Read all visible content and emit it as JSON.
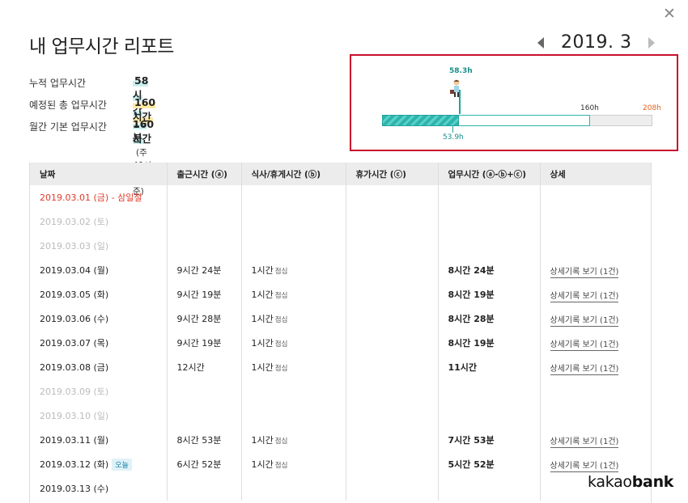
{
  "close_icon": "close-icon",
  "title": "내 업무시간 리포트",
  "month": "2019. 3",
  "summary": {
    "cumulative_label": "누적 업무시간",
    "cumulative_value": "58시간 16분",
    "planned_label": "예정된 총 업무시간",
    "planned_value": "160시간",
    "base_label": "월간 기본 업무시간",
    "base_value": "160시간",
    "base_note": "(주 40시간 기준)"
  },
  "chart_data": {
    "type": "bar",
    "current_label": "58.3h",
    "actual_label": "53.9h",
    "base_label": "160h",
    "max_label": "208h",
    "current": 58.3,
    "actual": 53.9,
    "base": 160,
    "max": 208
  },
  "table": {
    "headers": [
      "날짜",
      "출근시간 (ⓐ)",
      "식사/휴게시간 (ⓑ)",
      "휴가시간 (ⓒ)",
      "업무시간 (ⓐ-ⓑ+ⓒ)",
      "상세"
    ],
    "rows": [
      {
        "date": "2019.03.01 (금) - 삼일절",
        "type": "holiday",
        "work": "",
        "break": "",
        "break_note": "",
        "vacation": "",
        "total": "",
        "detail": ""
      },
      {
        "date": "2019.03.02 (토)",
        "type": "weekend",
        "work": "",
        "break": "",
        "break_note": "",
        "vacation": "",
        "total": "",
        "detail": ""
      },
      {
        "date": "2019.03.03 (일)",
        "type": "weekend",
        "work": "",
        "break": "",
        "break_note": "",
        "vacation": "",
        "total": "",
        "detail": ""
      },
      {
        "date": "2019.03.04 (월)",
        "type": "normal",
        "work": "9시간 24분",
        "break": "1시간",
        "break_note": "점심",
        "vacation": "",
        "total": "8시간 24분",
        "detail": "상세기록 보기 (1건)"
      },
      {
        "date": "2019.03.05 (화)",
        "type": "normal",
        "work": "9시간 19분",
        "break": "1시간",
        "break_note": "점심",
        "vacation": "",
        "total": "8시간 19분",
        "detail": "상세기록 보기 (1건)"
      },
      {
        "date": "2019.03.06 (수)",
        "type": "normal",
        "work": "9시간 28분",
        "break": "1시간",
        "break_note": "점심",
        "vacation": "",
        "total": "8시간 28분",
        "detail": "상세기록 보기 (1건)"
      },
      {
        "date": "2019.03.07 (목)",
        "type": "normal",
        "work": "9시간 19분",
        "break": "1시간",
        "break_note": "점심",
        "vacation": "",
        "total": "8시간 19분",
        "detail": "상세기록 보기 (1건)"
      },
      {
        "date": "2019.03.08 (금)",
        "type": "normal",
        "work": "12시간",
        "break": "1시간",
        "break_note": "점심",
        "vacation": "",
        "total": "11시간",
        "detail": "상세기록 보기 (1건)"
      },
      {
        "date": "2019.03.09 (토)",
        "type": "weekend",
        "work": "",
        "break": "",
        "break_note": "",
        "vacation": "",
        "total": "",
        "detail": ""
      },
      {
        "date": "2019.03.10 (일)",
        "type": "weekend",
        "work": "",
        "break": "",
        "break_note": "",
        "vacation": "",
        "total": "",
        "detail": ""
      },
      {
        "date": "2019.03.11 (월)",
        "type": "normal",
        "work": "8시간 53분",
        "break": "1시간",
        "break_note": "점심",
        "vacation": "",
        "total": "7시간 53분",
        "detail": "상세기록 보기 (1건)"
      },
      {
        "date": "2019.03.12 (화)",
        "type": "normal",
        "today": "오늘",
        "work": "6시간 52분",
        "break": "1시간",
        "break_note": "점심",
        "vacation": "",
        "total": "5시간 52분",
        "detail": "상세기록 보기 (1건)"
      },
      {
        "date": "2019.03.13 (수)",
        "type": "normal",
        "work": "",
        "break": "",
        "break_note": "",
        "vacation": "",
        "total": "",
        "detail": ""
      }
    ]
  },
  "logo": {
    "part1": "kakao",
    "part2": "bank"
  }
}
